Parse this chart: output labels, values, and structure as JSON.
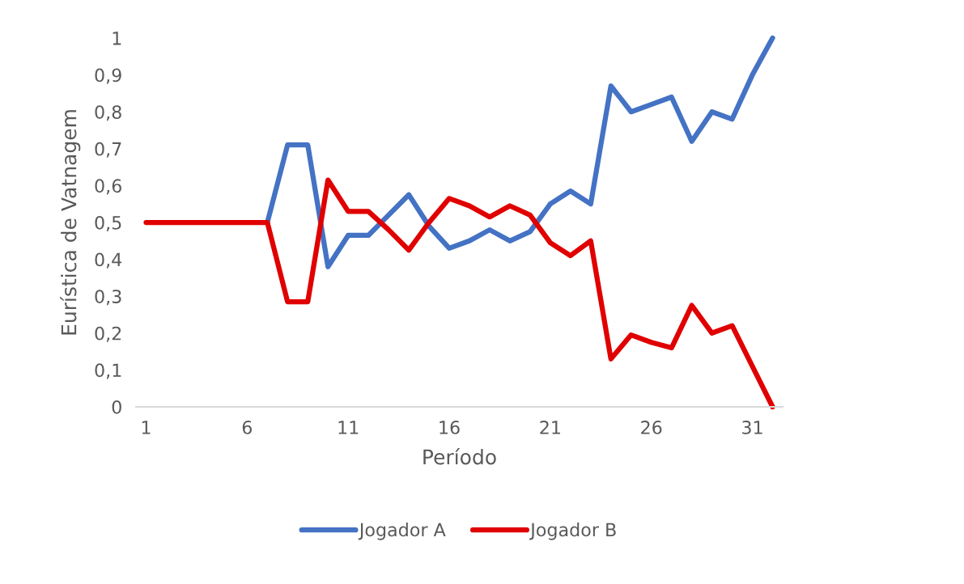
{
  "chart_data": {
    "type": "line",
    "xlabel": "Período",
    "ylabel": "Eurística de Vatnagem",
    "categories": [
      "1",
      null,
      null,
      null,
      null,
      "6",
      null,
      null,
      null,
      null,
      "11",
      null,
      null,
      null,
      null,
      "16",
      null,
      null,
      null,
      null,
      "21",
      null,
      null,
      null,
      null,
      "26",
      null,
      null,
      null,
      null,
      "31",
      null
    ],
    "series": [
      {
        "name": "Jogador A",
        "color": "#4472c4",
        "values": [
          null,
          null,
          null,
          null,
          null,
          null,
          0.5,
          0.71,
          0.71,
          0.38,
          0.465,
          0.465,
          0.52,
          0.575,
          0.49,
          0.43,
          0.45,
          0.48,
          0.45,
          0.475,
          0.55,
          0.585,
          0.55,
          0.87,
          0.8,
          0.82,
          0.84,
          0.72,
          0.8,
          0.78,
          0.9,
          1.0
        ]
      },
      {
        "name": "Jogador B",
        "color": "#e00000",
        "values": [
          0.5,
          0.5,
          0.5,
          0.5,
          0.5,
          0.5,
          0.5,
          0.285,
          0.285,
          0.615,
          0.53,
          0.53,
          0.48,
          0.425,
          0.5,
          0.565,
          0.545,
          0.515,
          0.545,
          0.52,
          0.445,
          0.41,
          0.45,
          0.13,
          0.195,
          0.175,
          0.16,
          0.275,
          0.2,
          0.22,
          0.11,
          0.0
        ]
      }
    ],
    "ylim": [
      0,
      1
    ],
    "yticks": [
      0,
      {
        "value": 0.1,
        "label": "0,1"
      },
      {
        "value": 0.2,
        "label": "0,2"
      },
      {
        "value": 0.3,
        "label": "0,3"
      },
      {
        "value": 0.4,
        "label": "0,4"
      },
      {
        "value": 0.5,
        "label": "0,5"
      },
      {
        "value": 0.6,
        "label": "0,6"
      },
      {
        "value": 0.7,
        "label": "0,7"
      },
      {
        "value": 0.8,
        "label": "0,8"
      },
      {
        "value": 0.9,
        "label": "0,9"
      },
      1
    ],
    "grid": false,
    "legend": "bottom",
    "line_style": "solid"
  }
}
